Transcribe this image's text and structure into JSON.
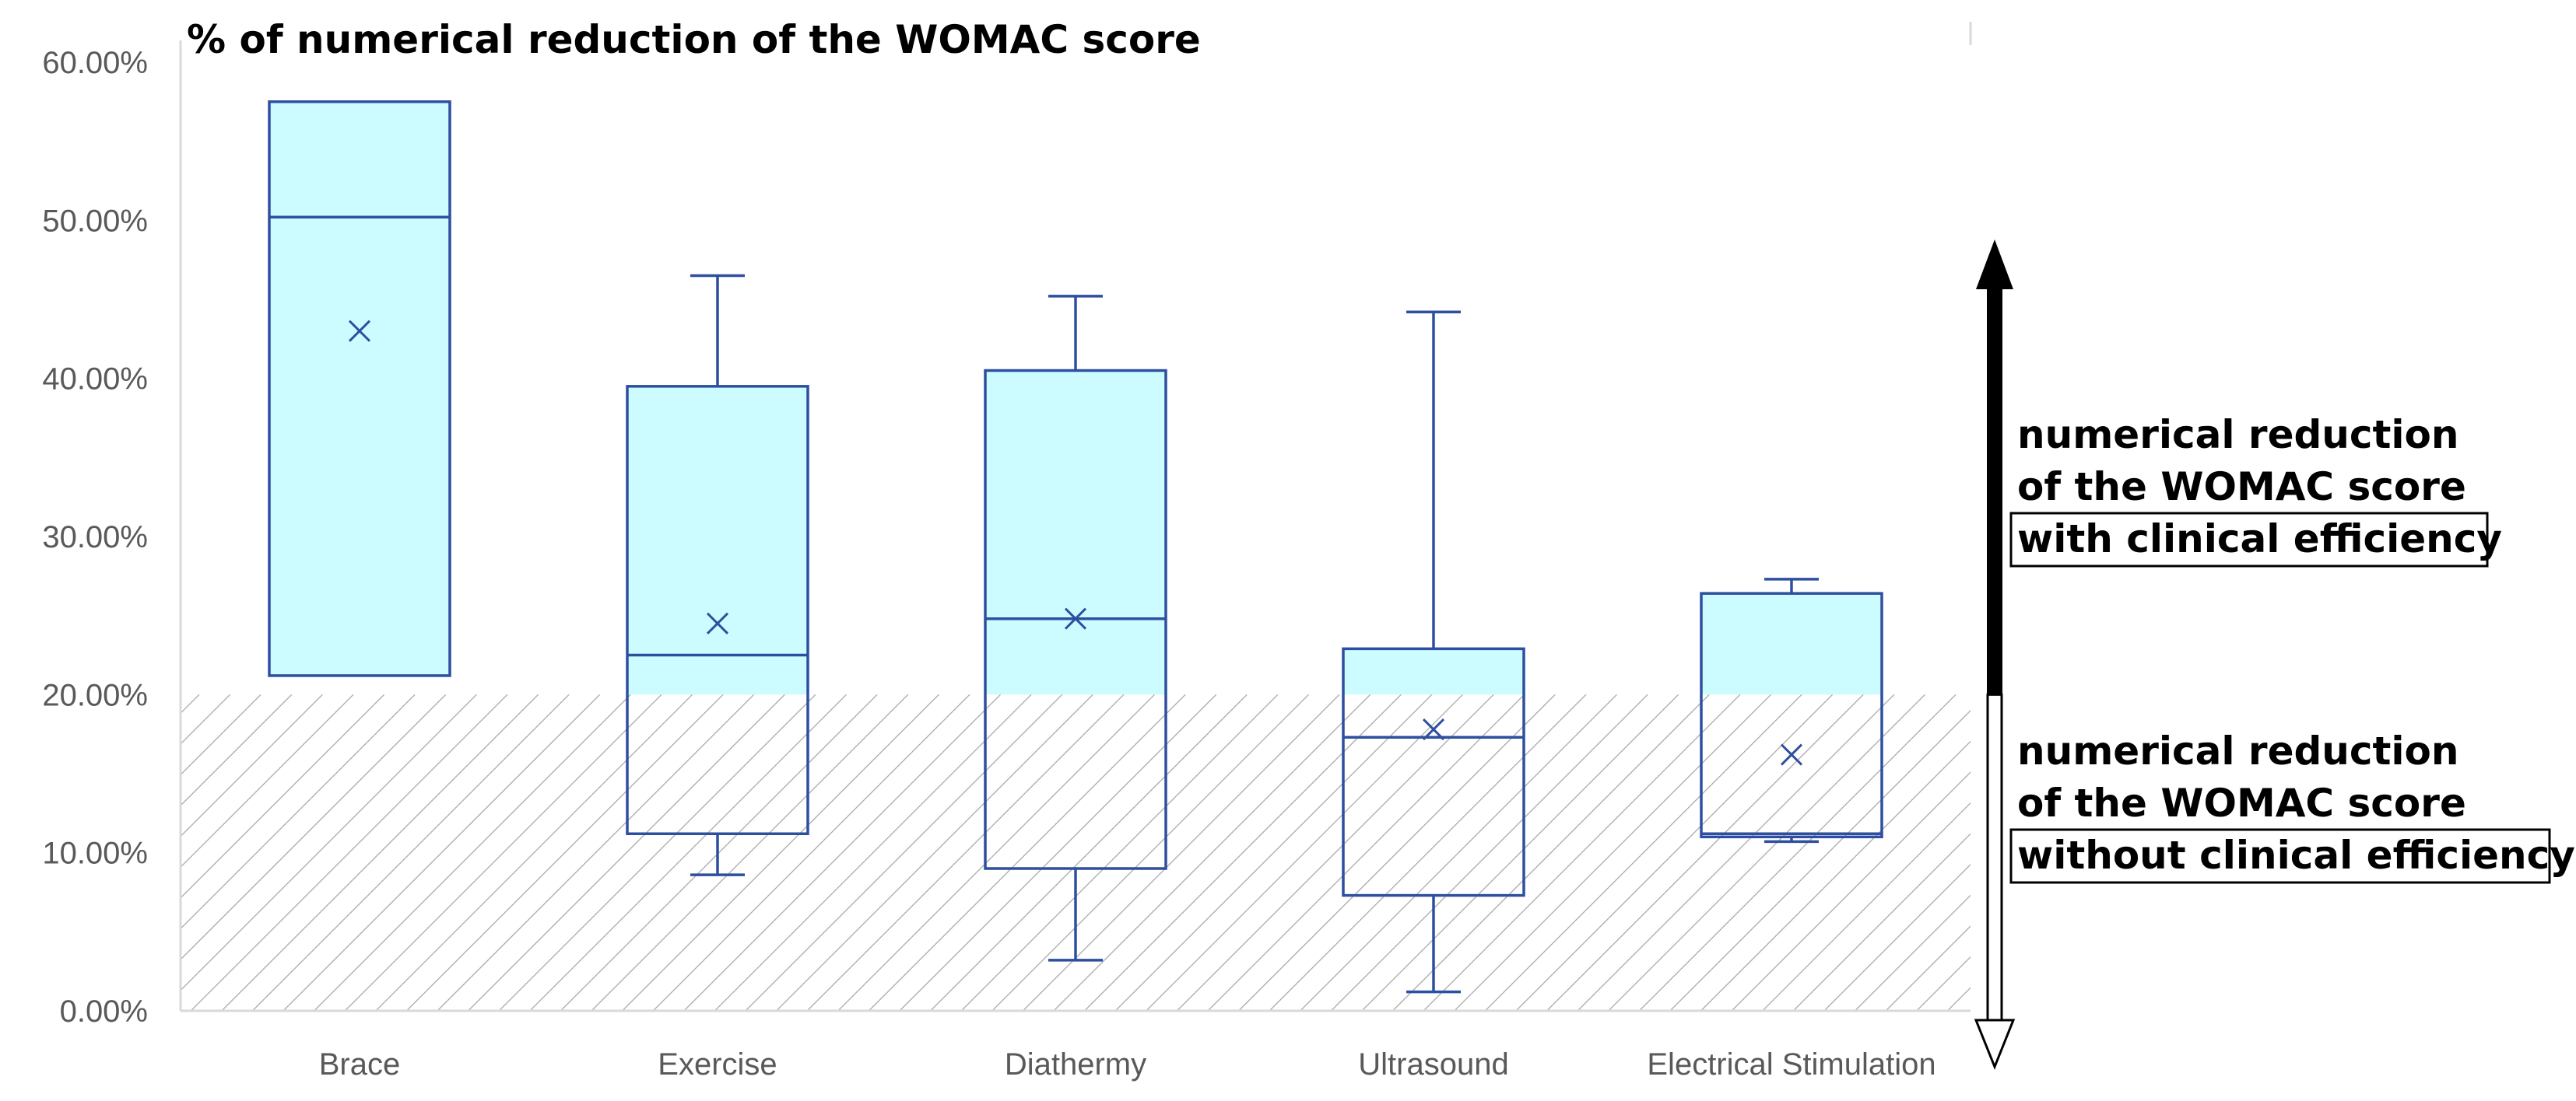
{
  "chart_data": {
    "type": "box",
    "title": "% of numerical reduction of the WOMAC score",
    "y_ticks": [
      "60.00%",
      "50.00%",
      "40.00%",
      "30.00%",
      "20.00%",
      "10.00%",
      "0.00%"
    ],
    "ylim": [
      0,
      0.6
    ],
    "threshold": 0.2,
    "categories": [
      "Brace",
      "Exercise",
      "Diathermy",
      "Ultrasound",
      "Electrical Stimulation"
    ],
    "boxes": [
      {
        "category": "Brace",
        "min": 0.212,
        "q1": 0.212,
        "median": 0.502,
        "q3": 0.575,
        "max": 0.575,
        "mean": 0.43
      },
      {
        "category": "Exercise",
        "min": 0.086,
        "q1": 0.112,
        "median": 0.225,
        "q3": 0.395,
        "max": 0.465,
        "mean": 0.245
      },
      {
        "category": "Diathermy",
        "min": 0.032,
        "q1": 0.09,
        "median": 0.248,
        "q3": 0.405,
        "max": 0.452,
        "mean": 0.248
      },
      {
        "category": "Ultrasound",
        "min": 0.012,
        "q1": 0.073,
        "median": 0.173,
        "q3": 0.229,
        "max": 0.442,
        "mean": 0.178
      },
      {
        "category": "Electrical Stimulation",
        "min": 0.107,
        "q1": 0.11,
        "median": 0.112,
        "q3": 0.264,
        "max": 0.273,
        "mean": 0.162
      }
    ],
    "grid": false,
    "colors": {
      "box_fill": "#ccfcff",
      "box_stroke": "#2e4f9f",
      "axis": "#d9d9d9",
      "hatch": "#a6a6a6",
      "label": "#595959"
    },
    "annotations": {
      "with": {
        "line1": "numerical reduction",
        "line2": "of the WOMAC score",
        "line3": "with clinical efficiency"
      },
      "without": {
        "line1": "numerical reduction",
        "line2": "of the WOMAC score",
        "line3": "without clinical efficiency"
      }
    }
  }
}
